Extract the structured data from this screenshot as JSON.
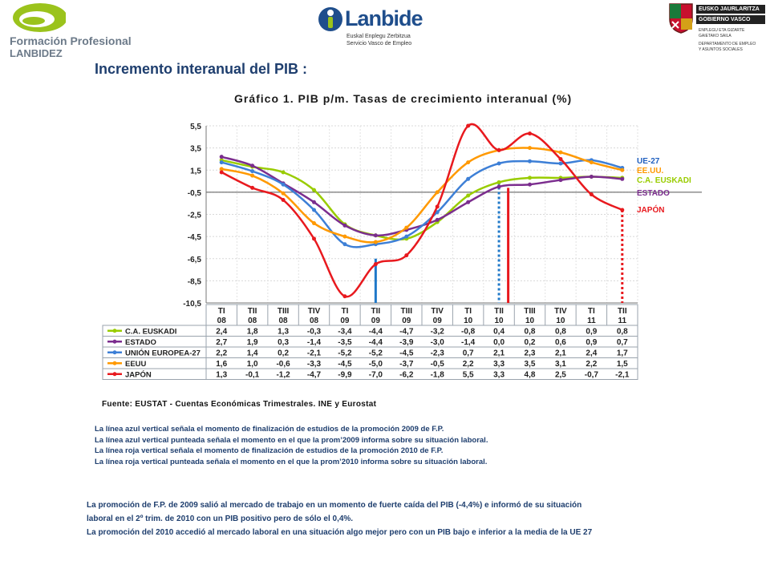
{
  "header": {
    "fp_logo_line1": "Formación Profesional",
    "fp_logo_line2": "LANBIDEZ",
    "lanbide_word": "Lanbide",
    "lanbide_sub1": "Euskal Enplegu Zerbitzua",
    "lanbide_sub2": "Servicio Vasco de Empleo",
    "gv_line1": "EUSKO JAURLARITZA",
    "gv_line2": "GOBIERNO VASCO",
    "gv_sub1": "ENPLEGU ETA GIZARTE",
    "gv_sub2": "GAIETAKO SAILA",
    "gv_sub3": "DEPARTAMENTO DE EMPLEO",
    "gv_sub4": "Y ASUNTOS SOCIALES"
  },
  "page_title": "Incremento interanual del PIB :",
  "chart_data": {
    "type": "line",
    "title": "Gráfico 1. PIB p/m. Tasas de crecimiento interanual (%)",
    "categories": [
      [
        "TI",
        "08"
      ],
      [
        "TII",
        "08"
      ],
      [
        "TIII",
        "08"
      ],
      [
        "TIV",
        "08"
      ],
      [
        "TI",
        "09"
      ],
      [
        "TII",
        "09"
      ],
      [
        "TIII",
        "09"
      ],
      [
        "TIV",
        "09"
      ],
      [
        "TI",
        "10"
      ],
      [
        "TII",
        "10"
      ],
      [
        "TIII",
        "10"
      ],
      [
        "TIV",
        "10"
      ],
      [
        "TI",
        "11"
      ],
      [
        "TII",
        "11"
      ]
    ],
    "yticks": [
      "5,5",
      "3,5",
      "1,5",
      "-0,5",
      "-2,5",
      "-4,5",
      "-6,5",
      "-8,5",
      "-10,5"
    ],
    "ylim": [
      -10.5,
      5.5
    ],
    "series": [
      {
        "name": "C.A. EUSKADI",
        "legend_label": "C.A. EUSKADI",
        "color": "#99cc00",
        "values": [
          2.4,
          1.8,
          1.3,
          -0.3,
          -3.4,
          -4.4,
          -4.7,
          -3.2,
          -0.8,
          0.4,
          0.8,
          0.8,
          0.9,
          0.8
        ],
        "cells": [
          "2,4",
          "1,8",
          "1,3",
          "-0,3",
          "-3,4",
          "-4,4",
          "-4,7",
          "-3,2",
          "-0,8",
          "0,4",
          "0,8",
          "0,8",
          "0,9",
          "0,8"
        ]
      },
      {
        "name": "ESTADO",
        "legend_label": "ESTADO",
        "color": "#7b2d8e",
        "values": [
          2.7,
          1.9,
          0.3,
          -1.4,
          -3.5,
          -4.4,
          -3.9,
          -3.0,
          -1.4,
          0.0,
          0.2,
          0.6,
          0.9,
          0.7
        ],
        "cells": [
          "2,7",
          "1,9",
          "0,3",
          "-1,4",
          "-3,5",
          "-4,4",
          "-3,9",
          "-3,0",
          "-1,4",
          "0,0",
          "0,2",
          "0,6",
          "0,9",
          "0,7"
        ]
      },
      {
        "name": "UNIÓN EUROPEA-27",
        "legend_label": "UE-27",
        "color": "#3d7fd6",
        "values": [
          2.2,
          1.4,
          0.2,
          -2.1,
          -5.2,
          -5.2,
          -4.5,
          -2.3,
          0.7,
          2.1,
          2.3,
          2.1,
          2.4,
          1.7
        ],
        "cells": [
          "2,2",
          "1,4",
          "0,2",
          "-2,1",
          "-5,2",
          "-5,2",
          "-4,5",
          "-2,3",
          "0,7",
          "2,1",
          "2,3",
          "2,1",
          "2,4",
          "1,7"
        ]
      },
      {
        "name": "EEUU",
        "legend_label": "EE.UU.",
        "color": "#ff9900",
        "values": [
          1.6,
          1.0,
          -0.6,
          -3.3,
          -4.5,
          -5.0,
          -3.7,
          -0.5,
          2.2,
          3.3,
          3.5,
          3.1,
          2.2,
          1.5
        ],
        "cells": [
          "1,6",
          "1,0",
          "-0,6",
          "-3,3",
          "-4,5",
          "-5,0",
          "-3,7",
          "-0,5",
          "2,2",
          "3,3",
          "3,5",
          "3,1",
          "2,2",
          "1,5"
        ]
      },
      {
        "name": "JAPÓN",
        "legend_label": "JAPÓN",
        "color": "#e8191e",
        "values": [
          1.3,
          -0.1,
          -1.2,
          -4.7,
          -9.9,
          -7.0,
          -6.2,
          -1.8,
          5.5,
          3.3,
          4.8,
          2.5,
          -0.7,
          -2.1
        ],
        "cells": [
          "1,3",
          "-0,1",
          "-1,2",
          "-4,7",
          "-9,9",
          "-7,0",
          "-6,2",
          "-1,8",
          "5,5",
          "3,3",
          "4,8",
          "2,5",
          "-0,7",
          "-2,1"
        ]
      }
    ],
    "right_legend_order": [
      "UNIÓN EUROPEA-27",
      "EEUU",
      "C.A. EUSKADI",
      "ESTADO",
      "JAPÓN"
    ],
    "right_legend_colors": [
      "#1f5fbf",
      "#ff9900",
      "#99cc00",
      "#7b2d8e",
      "#e8191e"
    ],
    "markers": [
      {
        "category_index": 5,
        "style": "solid",
        "color": "#1f78c8",
        "meaning": "fin estudios promoción 2009"
      },
      {
        "category_index": 9,
        "style": "dotted",
        "color": "#1f78c8",
        "meaning": "prom 2009 informa"
      },
      {
        "category_index": 9.3,
        "style": "solid",
        "color": "#e8191e",
        "meaning": "fin estudios promoción 2010"
      },
      {
        "category_index": 13,
        "style": "dotted",
        "color": "#e8191e",
        "meaning": "prom 2010 informa"
      }
    ],
    "grid": true,
    "legend": "right",
    "source": "Fuente: EUSTAT - Cuentas Económicas Trimestrales. INE y Eurostat"
  },
  "notes": [
    "La línea azul vertical señala el momento de finalización de estudios de la promoción  2009 de F.P.",
    "La línea azul vertical  punteada  señala el momento en el que la prom’2009 informa sobre su situación  laboral.",
    "La línea roja vertical señala el momento de finalización de estudios de la promoción 2010 de F.P.",
    "La línea roja vertical  punteada  señala el momento en el que la prom’2010 informa sobre su situación  laboral."
  ],
  "conclusion": [
    "La promoción de F.P. de 2009 salió al mercado de trabajo en un momento de fuerte caída del PIB  (-4,4%) e informó de su situación",
    "laboral   en el 2º trim. de 2010 con un PIB positivo pero de sólo el 0,4%.",
    "La promoción del 2010 accedió  al mercado laboral en una situación  algo  mejor  pero con un PIB bajo  e inferior a la media de la UE 27"
  ]
}
